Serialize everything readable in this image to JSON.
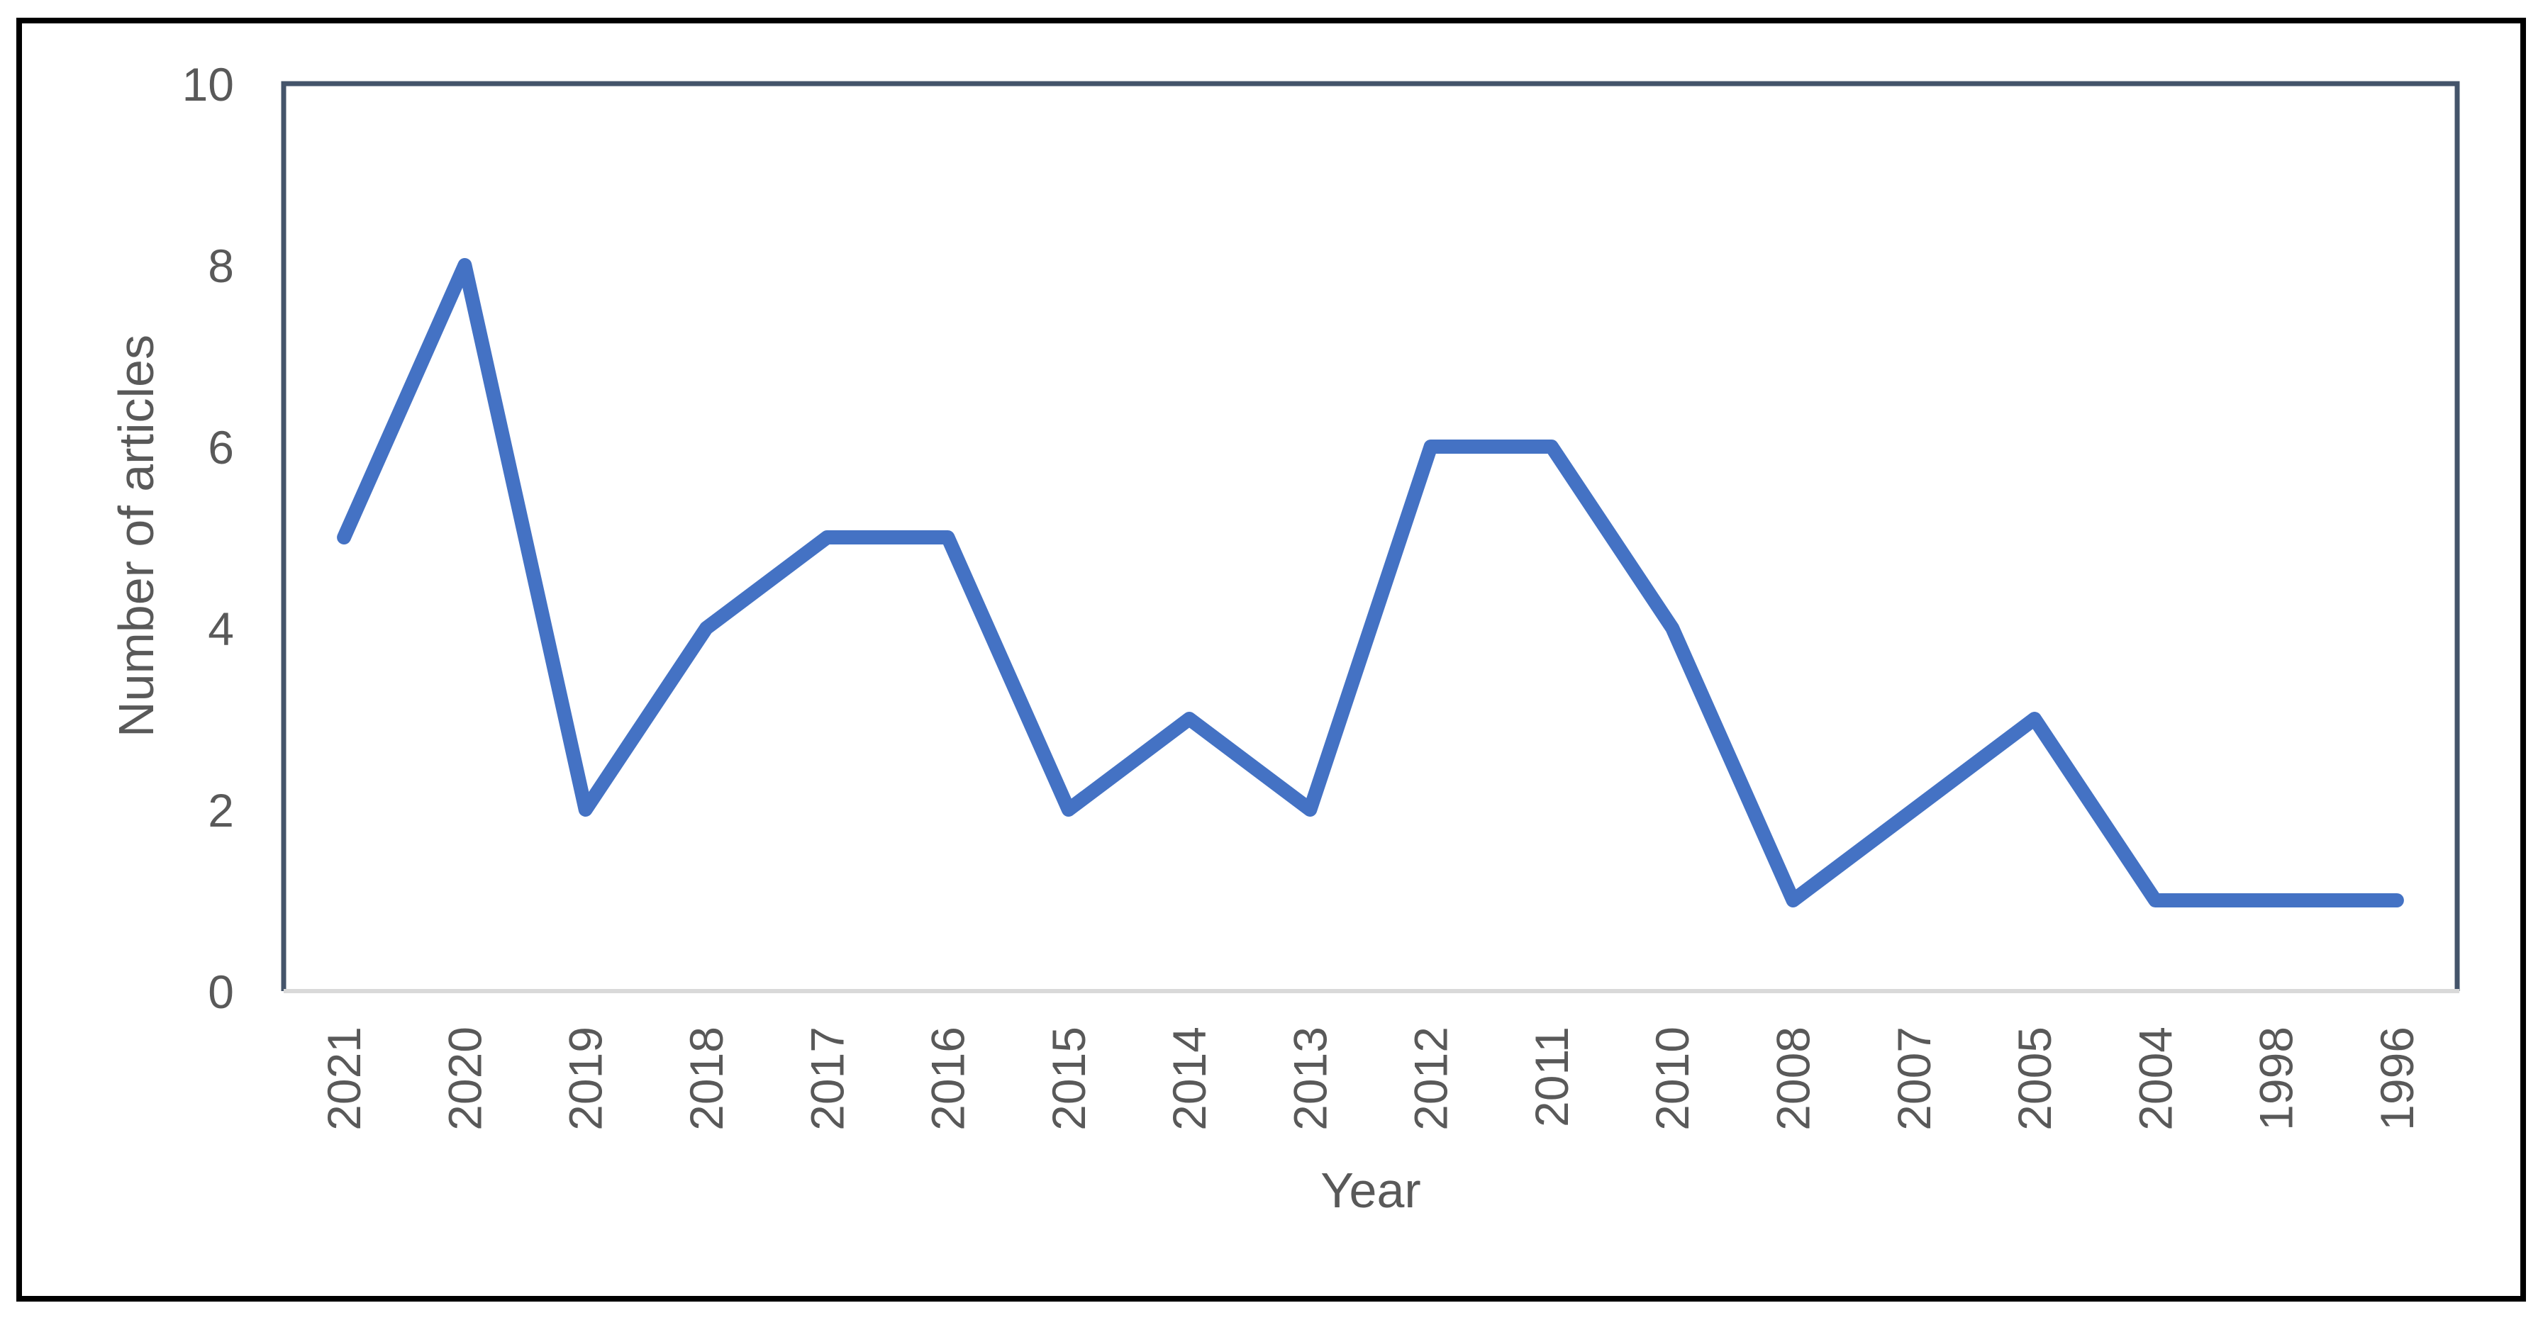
{
  "chart_data": {
    "type": "line",
    "title": "",
    "xlabel": "Year",
    "ylabel": "Number of articles",
    "categories": [
      "2021",
      "2020",
      "2019",
      "2018",
      "2017",
      "2016",
      "2015",
      "2014",
      "2013",
      "2012",
      "2011",
      "2010",
      "2008",
      "2007",
      "2005",
      "2004",
      "1998",
      "1996"
    ],
    "values": [
      5,
      8,
      2,
      4,
      5,
      5,
      2,
      3,
      2,
      6,
      6,
      4,
      1,
      2,
      3,
      1,
      1,
      1
    ],
    "ylim": [
      0,
      10
    ],
    "yticks": [
      0,
      2,
      4,
      6,
      8,
      10
    ],
    "grid": false,
    "legend": false,
    "colors": {
      "series_line": "#4472C4",
      "plot_border": "#44546A",
      "x_axis_line": "#D9D9D9",
      "tick_labels": "#595959",
      "axis_titles": "#595959",
      "outer_frame": "#000000",
      "background": "#FFFFFF"
    }
  }
}
